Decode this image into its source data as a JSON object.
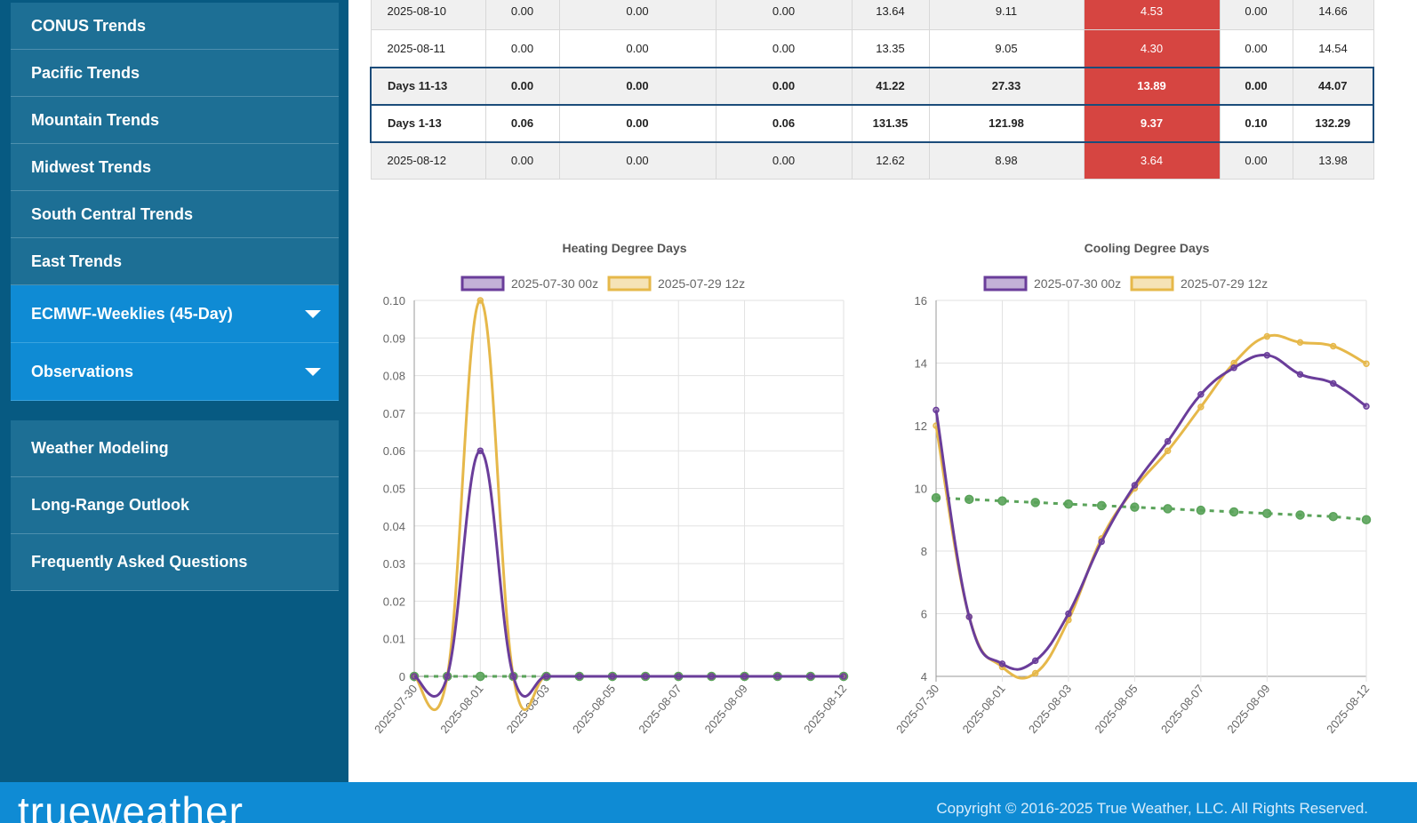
{
  "sidebar": {
    "trends": [
      {
        "label": "CONUS Trends"
      },
      {
        "label": "Pacific Trends"
      },
      {
        "label": "Mountain Trends"
      },
      {
        "label": "Midwest Trends"
      },
      {
        "label": "South Central Trends"
      },
      {
        "label": "East Trends"
      }
    ],
    "ecmwf_label": "ECMWF-Weeklies (45-Day)",
    "observations_label": "Observations",
    "links": [
      {
        "label": "Weather Modeling"
      },
      {
        "label": "Long-Range Outlook"
      },
      {
        "label": "Frequently Asked Questions"
      }
    ]
  },
  "table": {
    "rows": [
      {
        "cells": [
          "2025-08-10",
          "0.00",
          "0.00",
          "0.00",
          "13.64",
          "9.11",
          "4.53",
          "0.00",
          "14.66"
        ]
      },
      {
        "cells": [
          "2025-08-11",
          "0.00",
          "0.00",
          "0.00",
          "13.35",
          "9.05",
          "4.30",
          "0.00",
          "14.54"
        ]
      },
      {
        "cells": [
          "Days 11-13",
          "0.00",
          "0.00",
          "0.00",
          "41.22",
          "27.33",
          "13.89",
          "0.00",
          "44.07"
        ]
      },
      {
        "cells": [
          "Days 1-13",
          "0.06",
          "0.00",
          "0.06",
          "131.35",
          "121.98",
          "9.37",
          "0.10",
          "132.29"
        ]
      },
      {
        "cells": [
          "2025-08-12",
          "0.00",
          "0.00",
          "0.00",
          "12.62",
          "8.98",
          "3.64",
          "0.00",
          "13.98"
        ]
      }
    ],
    "highlight_color": "#d64541"
  },
  "chart_data": [
    {
      "type": "line",
      "title": "Heating Degree Days",
      "x": [
        "2025-07-30",
        "2025-07-31",
        "2025-08-01",
        "2025-08-02",
        "2025-08-03",
        "2025-08-04",
        "2025-08-05",
        "2025-08-06",
        "2025-08-07",
        "2025-08-08",
        "2025-08-09",
        "2025-08-10",
        "2025-08-11",
        "2025-08-12"
      ],
      "x_tick_labels": [
        "2025-07-30",
        "2025-08-01",
        "2025-08-03",
        "2025-08-05",
        "2025-08-07",
        "2025-08-09",
        "2025-08-12"
      ],
      "ylim": [
        0,
        0.1
      ],
      "y_ticks": [
        "0",
        "0.01",
        "0.02",
        "0.03",
        "0.04",
        "0.05",
        "0.06",
        "0.07",
        "0.08",
        "0.09",
        "0.10"
      ],
      "series": [
        {
          "name": "2025-07-30 00z",
          "color": "#6a3d9a",
          "values": [
            0,
            0,
            0.06,
            0,
            0,
            0,
            0,
            0,
            0,
            0,
            0,
            0,
            0,
            0
          ]
        },
        {
          "name": "2025-07-29 12z",
          "color": "#e6b84a",
          "values": [
            0,
            0,
            0.1,
            0,
            0,
            0,
            0,
            0,
            0,
            0,
            0,
            0,
            0,
            0
          ]
        },
        {
          "color": "#5aa35a",
          "dashed": true,
          "values": [
            0,
            0,
            0,
            0,
            0,
            0,
            0,
            0,
            0,
            0,
            0,
            0,
            0,
            0
          ]
        }
      ],
      "grid": true,
      "legend": "top"
    },
    {
      "type": "line",
      "title": "Cooling Degree Days",
      "x": [
        "2025-07-30",
        "2025-07-31",
        "2025-08-01",
        "2025-08-02",
        "2025-08-03",
        "2025-08-04",
        "2025-08-05",
        "2025-08-06",
        "2025-08-07",
        "2025-08-08",
        "2025-08-09",
        "2025-08-10",
        "2025-08-11",
        "2025-08-12"
      ],
      "x_tick_labels": [
        "2025-07-30",
        "2025-08-01",
        "2025-08-03",
        "2025-08-05",
        "2025-08-07",
        "2025-08-09",
        "2025-08-12"
      ],
      "ylim": [
        4,
        16
      ],
      "y_ticks": [
        "4",
        "6",
        "8",
        "10",
        "12",
        "14",
        "16"
      ],
      "series": [
        {
          "name": "2025-07-30 00z",
          "color": "#6a3d9a",
          "values": [
            12.5,
            5.9,
            4.4,
            4.5,
            6.0,
            8.3,
            10.1,
            11.5,
            13.0,
            13.85,
            14.25,
            13.64,
            13.35,
            12.62
          ]
        },
        {
          "name": "2025-07-29 12z",
          "color": "#e6b84a",
          "values": [
            12.0,
            5.9,
            4.3,
            4.1,
            5.8,
            8.4,
            10.0,
            11.2,
            12.6,
            14.0,
            14.85,
            14.66,
            14.54,
            13.98
          ]
        },
        {
          "color": "#5aa35a",
          "dashed": true,
          "values": [
            9.7,
            9.65,
            9.6,
            9.55,
            9.5,
            9.45,
            9.4,
            9.35,
            9.3,
            9.25,
            9.2,
            9.15,
            9.1,
            9.0
          ]
        }
      ],
      "grid": true,
      "legend": "top"
    }
  ],
  "footer": {
    "logo": "trueweather",
    "copyright": "Copyright © 2016-2025 True Weather, LLC. All Rights Reserved."
  }
}
